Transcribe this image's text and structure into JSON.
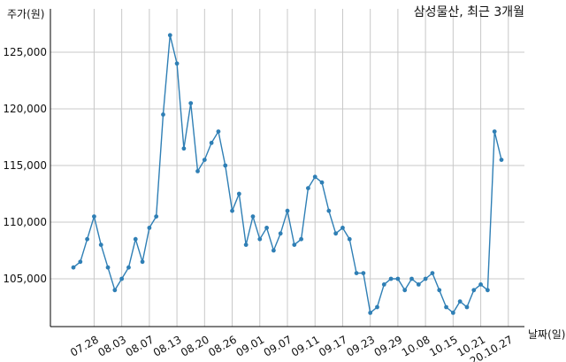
{
  "chart_data": {
    "type": "line",
    "title": "삼성물산, 최근 3개월",
    "ylabel": "주가(원)",
    "xlabel": "날짜(일)",
    "ylim": [
      100500,
      128500
    ],
    "yticks": [
      105000,
      110000,
      115000,
      120000,
      125000
    ],
    "ytick_labels": [
      "105,000",
      "110,000",
      "115,000",
      "120,000",
      "125,000"
    ],
    "xtick_labels": [
      "07.28",
      "08.03",
      "08.07",
      "08.13",
      "08.20",
      "08.26",
      "09.01",
      "09.07",
      "09.11",
      "09.17",
      "09.23",
      "09.29",
      "10.08",
      "10.15",
      "10.21",
      "20.10.27"
    ],
    "xtick_index": [
      3,
      7,
      11,
      15,
      19,
      23,
      27,
      31,
      35,
      39,
      43,
      47,
      51,
      55,
      59,
      63
    ],
    "grid": true,
    "color": "#2f7fb5",
    "series": [
      {
        "values": [
          106000,
          106500,
          108500,
          110500,
          108000,
          106000,
          104000,
          105000,
          106000,
          108500,
          106500,
          109500,
          110500,
          119500,
          126500,
          124000,
          116500,
          120500,
          114500,
          115500,
          117000,
          118000,
          115000,
          111000,
          112500,
          108000,
          110500,
          108500,
          109500,
          107500,
          109000,
          111000,
          108000,
          108500,
          113000,
          114000,
          113500,
          111000,
          109000,
          109500,
          108500,
          105500,
          105500,
          102000,
          102500,
          104500,
          105000,
          105000,
          104000,
          105000,
          104500,
          105000,
          105500,
          104000,
          102500,
          102000,
          103000,
          102500,
          104000,
          104500,
          104000,
          118000,
          115500
        ]
      }
    ]
  }
}
